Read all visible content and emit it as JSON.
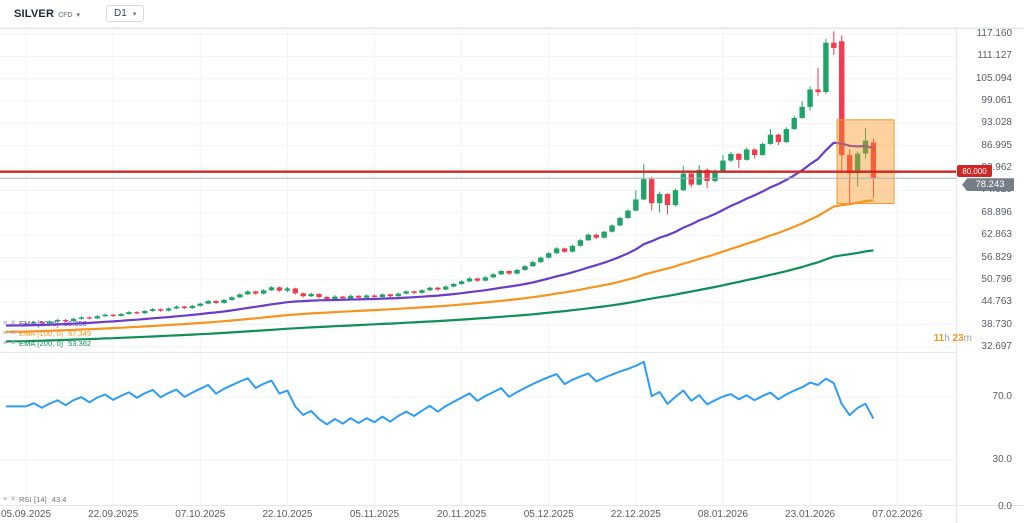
{
  "header": {
    "symbol": "SILVER",
    "instrument_type": "CFD",
    "timeframe": "D1"
  },
  "countdown": {
    "hours": "11",
    "hours_unit": "h",
    "minutes": "23",
    "minutes_unit": "m",
    "accent_color": "#f7941e"
  },
  "chart_data": {
    "type": "candlestick",
    "symbol": "SILVER CFD",
    "timeframe": "D1",
    "y_ticks": [
      117.16,
      111.127,
      105.094,
      99.061,
      93.028,
      86.995,
      80.962,
      74.929,
      68.896,
      62.863,
      56.829,
      50.796,
      44.763,
      38.73,
      32.697
    ],
    "time_axis": {
      "labels": [
        "05.09.2025",
        "22.09.2025",
        "07.10.2025",
        "22.10.2025",
        "05.11.2025",
        "20.11.2025",
        "05.12.2025",
        "22.12.2025",
        "08.01.2026",
        "23.01.2026",
        "07.02.2026"
      ],
      "bar_indices": [
        0,
        11,
        22,
        33,
        44,
        55,
        66,
        77,
        88,
        99,
        110
      ]
    },
    "price_line": {
      "label": "80.000",
      "value": 80.0,
      "color": "#cf2626"
    },
    "last_price": {
      "label": "78.243",
      "value": 78.243,
      "line_color": "#aab0b8",
      "badge_color": "#757d87"
    },
    "indicators": [
      {
        "label": "EMA [50, 0]",
        "value": "86.358",
        "period": 50,
        "color": "#6b3cc9"
      },
      {
        "label": "EMA [100, 0]",
        "value": "67.349",
        "period": 100,
        "color": "#f7941e"
      },
      {
        "label": "EMA [200, 0]",
        "value": "53.362",
        "period": 200,
        "color": "#0f8f56"
      }
    ],
    "oscillator": {
      "label": "RSI [14]",
      "value": "43.4",
      "period": 14,
      "color": "#2e9df5",
      "tick_values": [
        70,
        30,
        0
      ]
    },
    "highlight_box": {
      "bar_start": 102.4,
      "bar_end": 109.6,
      "price_top": 94.0,
      "price_bottom": 71.4,
      "fill": "rgba(247,148,29,0.42)",
      "stroke": "#ef9b2d"
    },
    "colors": {
      "up": "#1fa368",
      "down": "#f23b4e",
      "grid": "#f1f3f6",
      "axis_text": "#575c66"
    },
    "ohlc": [
      [
        38.7,
        39.2,
        38.4,
        39.0
      ],
      [
        39.0,
        39.7,
        38.8,
        39.4
      ],
      [
        39.4,
        39.6,
        38.8,
        39.1
      ],
      [
        39.1,
        39.9,
        38.9,
        39.6
      ],
      [
        39.6,
        40.3,
        39.4,
        40.0
      ],
      [
        40.0,
        40.2,
        39.4,
        39.7
      ],
      [
        39.7,
        40.6,
        39.5,
        40.3
      ],
      [
        40.3,
        41.0,
        40.1,
        40.7
      ],
      [
        40.7,
        40.9,
        40.1,
        40.4
      ],
      [
        40.4,
        41.3,
        40.2,
        41.0
      ],
      [
        41.0,
        41.7,
        40.8,
        41.4
      ],
      [
        41.4,
        41.6,
        40.8,
        41.1
      ],
      [
        41.1,
        41.9,
        40.9,
        41.6
      ],
      [
        41.6,
        42.4,
        41.4,
        42.1
      ],
      [
        42.1,
        42.3,
        41.5,
        41.8
      ],
      [
        41.8,
        42.7,
        41.6,
        42.4
      ],
      [
        42.4,
        43.2,
        42.2,
        42.9
      ],
      [
        42.9,
        43.1,
        42.2,
        42.5
      ],
      [
        42.5,
        43.4,
        42.3,
        43.1
      ],
      [
        43.1,
        43.9,
        42.9,
        43.6
      ],
      [
        43.6,
        43.8,
        42.9,
        43.2
      ],
      [
        43.2,
        44.1,
        43.0,
        43.8
      ],
      [
        43.8,
        44.7,
        43.6,
        44.4
      ],
      [
        44.4,
        45.4,
        44.2,
        45.1
      ],
      [
        45.1,
        45.3,
        44.3,
        44.6
      ],
      [
        44.6,
        45.7,
        44.4,
        45.4
      ],
      [
        45.4,
        46.4,
        45.2,
        46.1
      ],
      [
        46.1,
        47.2,
        45.9,
        46.9
      ],
      [
        46.9,
        48.0,
        46.7,
        47.7
      ],
      [
        47.7,
        47.9,
        46.8,
        47.1
      ],
      [
        47.1,
        48.3,
        46.9,
        48.0
      ],
      [
        48.0,
        49.1,
        47.8,
        48.8
      ],
      [
        48.8,
        49.0,
        47.6,
        47.9
      ],
      [
        47.9,
        48.9,
        47.5,
        48.5
      ],
      [
        48.5,
        48.7,
        46.8,
        47.2
      ],
      [
        47.2,
        47.4,
        46.0,
        46.4
      ],
      [
        46.4,
        47.4,
        46.2,
        47.0
      ],
      [
        47.0,
        47.2,
        45.8,
        46.2
      ],
      [
        46.2,
        46.4,
        45.1,
        45.6
      ],
      [
        45.6,
        46.7,
        45.4,
        46.3
      ],
      [
        46.3,
        46.5,
        45.4,
        45.8
      ],
      [
        45.8,
        46.9,
        45.6,
        46.5
      ],
      [
        46.5,
        46.7,
        45.6,
        46.0
      ],
      [
        46.0,
        46.9,
        45.8,
        46.6
      ],
      [
        46.6,
        46.8,
        45.8,
        46.2
      ],
      [
        46.2,
        47.2,
        46.0,
        46.9
      ],
      [
        46.9,
        47.1,
        46.0,
        46.4
      ],
      [
        46.4,
        47.4,
        46.2,
        47.1
      ],
      [
        47.1,
        48.0,
        46.9,
        47.7
      ],
      [
        47.7,
        47.9,
        47.0,
        47.3
      ],
      [
        47.3,
        48.3,
        47.1,
        48.0
      ],
      [
        48.0,
        49.0,
        47.8,
        48.7
      ],
      [
        48.7,
        48.9,
        47.9,
        48.2
      ],
      [
        48.2,
        49.3,
        48.0,
        49.0
      ],
      [
        49.0,
        50.0,
        48.8,
        49.7
      ],
      [
        49.7,
        50.7,
        49.5,
        50.4
      ],
      [
        50.4,
        51.5,
        50.2,
        51.2
      ],
      [
        51.2,
        51.4,
        50.3,
        50.6
      ],
      [
        50.6,
        51.8,
        50.4,
        51.5
      ],
      [
        51.5,
        52.6,
        51.3,
        52.3
      ],
      [
        52.3,
        53.5,
        52.1,
        53.2
      ],
      [
        53.2,
        53.4,
        52.2,
        52.5
      ],
      [
        52.5,
        53.8,
        52.3,
        53.5
      ],
      [
        53.5,
        54.8,
        53.3,
        54.5
      ],
      [
        54.5,
        55.9,
        54.3,
        55.6
      ],
      [
        55.6,
        57.1,
        55.4,
        56.8
      ],
      [
        56.8,
        58.3,
        56.6,
        58.0
      ],
      [
        58.0,
        59.6,
        57.8,
        59.3
      ],
      [
        59.3,
        59.5,
        58.1,
        58.4
      ],
      [
        58.4,
        60.3,
        58.2,
        60.0
      ],
      [
        60.0,
        61.8,
        59.8,
        61.5
      ],
      [
        61.5,
        63.3,
        61.3,
        63.0
      ],
      [
        63.0,
        63.2,
        61.8,
        62.2
      ],
      [
        62.2,
        64.1,
        62.0,
        63.8
      ],
      [
        63.8,
        65.8,
        63.6,
        65.5
      ],
      [
        65.5,
        67.8,
        65.3,
        67.5
      ],
      [
        67.5,
        69.8,
        67.3,
        69.5
      ],
      [
        69.5,
        75.0,
        69.3,
        72.5
      ],
      [
        72.5,
        82.0,
        72.3,
        78.0
      ],
      [
        78.0,
        78.6,
        69.5,
        71.5
      ],
      [
        71.5,
        74.6,
        69.0,
        74.0
      ],
      [
        74.0,
        74.2,
        68.5,
        71.0
      ],
      [
        71.0,
        75.5,
        70.6,
        75.0
      ],
      [
        75.0,
        81.5,
        74.8,
        79.5
      ],
      [
        79.5,
        79.9,
        75.8,
        76.5
      ],
      [
        76.5,
        81.8,
        76.3,
        80.5
      ],
      [
        80.5,
        80.9,
        75.5,
        77.5
      ],
      [
        77.5,
        80.6,
        77.1,
        80.2
      ],
      [
        80.2,
        84.5,
        80.0,
        83.0
      ],
      [
        83.0,
        85.3,
        82.6,
        84.8
      ],
      [
        84.8,
        85.0,
        81.0,
        83.2
      ],
      [
        83.2,
        86.5,
        83.0,
        86.0
      ],
      [
        86.0,
        86.3,
        83.6,
        84.5
      ],
      [
        84.5,
        87.9,
        84.3,
        87.5
      ],
      [
        87.5,
        91.5,
        87.3,
        90.0
      ],
      [
        90.0,
        90.3,
        87.2,
        88.0
      ],
      [
        88.0,
        92.0,
        87.8,
        91.5
      ],
      [
        91.5,
        95.0,
        91.3,
        94.5
      ],
      [
        94.5,
        99.0,
        94.3,
        97.5
      ],
      [
        97.5,
        103.0,
        96.5,
        102.2
      ],
      [
        102.2,
        108.0,
        100.5,
        101.5
      ],
      [
        101.5,
        115.8,
        101.0,
        114.8
      ],
      [
        114.8,
        117.9,
        111.5,
        113.4
      ],
      [
        115.2,
        116.8,
        79.5,
        84.5
      ],
      [
        84.5,
        86.0,
        71.5,
        79.6
      ],
      [
        79.6,
        85.5,
        76.0,
        84.9
      ],
      [
        84.9,
        91.8,
        83.5,
        88.4
      ],
      [
        87.9,
        88.9,
        72.9,
        78.243
      ]
    ]
  }
}
